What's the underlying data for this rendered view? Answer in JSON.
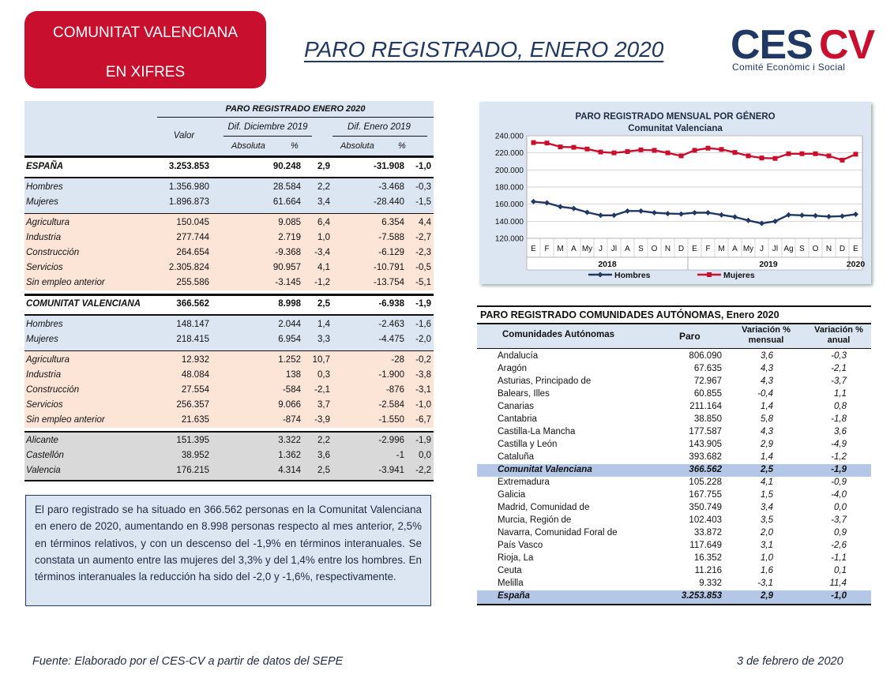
{
  "badge": {
    "line1": "COMUNITAT VALENCIANA",
    "line2": "EN XIFRES",
    "color": "#c8102e"
  },
  "page_title": "PARO REGISTRADO, ENERO 2020",
  "logo": {
    "brand": "CESCV",
    "subtitle": "Comité Econòmic i Social"
  },
  "left_table": {
    "title": "PARO REGISTRADO ENERO 2020",
    "col_valor": "Valor",
    "col_dif_dic": "Dif. Diciembre 2019",
    "col_dif_ene": "Dif. Enero 2019",
    "col_absoluta": "Absoluta",
    "col_pct": "%",
    "rows": [
      {
        "name": "ESPAÑA",
        "valor": "3.253.853",
        "abs1": "90.248",
        "pct1": "2,9",
        "abs2": "-31.908",
        "pct2": "-1,0"
      },
      {
        "name": "Hombres",
        "valor": "1.356.980",
        "abs1": "28.584",
        "pct1": "2,2",
        "abs2": "-3.468",
        "pct2": "-0,3"
      },
      {
        "name": "Mujeres",
        "valor": "1.896.873",
        "abs1": "61.664",
        "pct1": "3,4",
        "abs2": "-28.440",
        "pct2": "-1,5"
      },
      {
        "name": "Agricultura",
        "valor": "150.045",
        "abs1": "9.085",
        "pct1": "6,4",
        "abs2": "6.354",
        "pct2": "4,4"
      },
      {
        "name": "Industria",
        "valor": "277.744",
        "abs1": "2.719",
        "pct1": "1,0",
        "abs2": "-7.588",
        "pct2": "-2,7"
      },
      {
        "name": "Construcción",
        "valor": "264.654",
        "abs1": "-9.368",
        "pct1": "-3,4",
        "abs2": "-6.129",
        "pct2": "-2,3"
      },
      {
        "name": "Servicios",
        "valor": "2.305.824",
        "abs1": "90.957",
        "pct1": "4,1",
        "abs2": "-10.791",
        "pct2": "-0,5"
      },
      {
        "name": "Sin empleo anterior",
        "valor": "255.586",
        "abs1": "-3.145",
        "pct1": "-1,2",
        "abs2": "-13.754",
        "pct2": "-5,1"
      },
      {
        "name": "COMUNITAT VALENCIANA",
        "valor": "366.562",
        "abs1": "8.998",
        "pct1": "2,5",
        "abs2": "-6.938",
        "pct2": "-1,9"
      },
      {
        "name": "Hombres",
        "valor": "148.147",
        "abs1": "2.044",
        "pct1": "1,4",
        "abs2": "-2.463",
        "pct2": "-1,6"
      },
      {
        "name": "Mujeres",
        "valor": "218.415",
        "abs1": "6.954",
        "pct1": "3,3",
        "abs2": "-4.475",
        "pct2": "-2,0"
      },
      {
        "name": "Agricultura",
        "valor": "12.932",
        "abs1": "1.252",
        "pct1": "10,7",
        "abs2": "-28",
        "pct2": "-0,2"
      },
      {
        "name": "Industria",
        "valor": "48.084",
        "abs1": "138",
        "pct1": "0,3",
        "abs2": "-1.900",
        "pct2": "-3,8"
      },
      {
        "name": "Construcción",
        "valor": "27.554",
        "abs1": "-584",
        "pct1": "-2,1",
        "abs2": "-876",
        "pct2": "-3,1"
      },
      {
        "name": "Servicios",
        "valor": "256.357",
        "abs1": "9.066",
        "pct1": "3,7",
        "abs2": "-2.584",
        "pct2": "-1,0"
      },
      {
        "name": "Sin empleo anterior",
        "valor": "21.635",
        "abs1": "-874",
        "pct1": "-3,9",
        "abs2": "-1.550",
        "pct2": "-6,7"
      },
      {
        "name": "Alicante",
        "valor": "151.395",
        "abs1": "3.322",
        "pct1": "2,2",
        "abs2": "-2.996",
        "pct2": "-1,9"
      },
      {
        "name": "Castellón",
        "valor": "38.952",
        "abs1": "1.362",
        "pct1": "3,6",
        "abs2": "-1",
        "pct2": "0,0"
      },
      {
        "name": "Valencia",
        "valor": "176.215",
        "abs1": "4.314",
        "pct1": "2,5",
        "abs2": "-3.941",
        "pct2": "-2,2"
      }
    ]
  },
  "summary_text": "El paro registrado se ha situado en 366.562 personas en la Comunitat Valenciana en enero de 2020, aumentando en 8.998 personas respecto al mes anterior, 2,5% en términos relativos, y con un descenso del -1,9% en términos interanuales. Se constata un aumento entre las mujeres del 3,3% y del 1,4% entre los hombres. En términos interanuales la reducción ha sido del -2,0 y -1,6%, respectivamente.",
  "chart_data": {
    "type": "line",
    "title": "PARO REGISTRADO MENSUAL POR GÉNERO",
    "subtitle": "Comunitat Valenciana",
    "categories": [
      "E",
      "F",
      "M",
      "A",
      "My",
      "J",
      "Jl",
      "A",
      "S",
      "O",
      "N",
      "D",
      "E",
      "F",
      "M",
      "A",
      "My",
      "J",
      "Jl",
      "Ag",
      "S",
      "O",
      "N",
      "D",
      "E"
    ],
    "year_labels": [
      "2018",
      "2019",
      "2020"
    ],
    "ylim": [
      120000,
      240000
    ],
    "yticks": [
      "120.000",
      "140.000",
      "160.000",
      "180.000",
      "200.000",
      "220.000",
      "240.000"
    ],
    "yticks_values": [
      120000,
      140000,
      160000,
      180000,
      200000,
      220000,
      240000
    ],
    "grid": true,
    "legend": "bottom",
    "series": [
      {
        "name": "Hombres",
        "color": "#1f3864",
        "values": [
          163000,
          161500,
          157000,
          155000,
          150500,
          147000,
          147000,
          152000,
          152000,
          150000,
          149000,
          148500,
          150000,
          150000,
          147500,
          145000,
          141000,
          137500,
          140000,
          147500,
          147000,
          146500,
          145500,
          146000,
          148147
        ]
      },
      {
        "name": "Mujeres",
        "color": "#c8102e",
        "values": [
          232000,
          231500,
          227000,
          226500,
          224500,
          221000,
          220000,
          221500,
          223500,
          223000,
          220000,
          216500,
          223000,
          225500,
          224000,
          220500,
          216500,
          214000,
          213500,
          219000,
          219000,
          219000,
          216500,
          211500,
          218415
        ]
      }
    ]
  },
  "right_table": {
    "title": "PARO REGISTRADO COMUNIDADES AUTÓNOMAS, Enero 2020",
    "col_ca": "Comunidades Autónomas",
    "col_paro": "Paro",
    "col_mensual": "Variación % mensual",
    "col_mensual_1": "Variación %",
    "col_mensual_2": "mensual",
    "col_anual_1": "Variación %",
    "col_anual_2": "anual",
    "rows": [
      {
        "name": "Andalucía",
        "paro": "806.090",
        "mes": "3,6",
        "anual": "-0,3"
      },
      {
        "name": "Aragón",
        "paro": "67.635",
        "mes": "4,3",
        "anual": "-2,1"
      },
      {
        "name": "Asturias, Principado de",
        "paro": "72.967",
        "mes": "4,3",
        "anual": "-3,7"
      },
      {
        "name": "Balears, Illes",
        "paro": "60.855",
        "mes": "-0,4",
        "anual": "1,1"
      },
      {
        "name": "Canarias",
        "paro": "211.164",
        "mes": "1,4",
        "anual": "0,8"
      },
      {
        "name": "Cantabria",
        "paro": "38.850",
        "mes": "5,8",
        "anual": "-1,8"
      },
      {
        "name": "Castilla-La Mancha",
        "paro": "177.587",
        "mes": "4,3",
        "anual": "3,6"
      },
      {
        "name": "Castilla y León",
        "paro": "143.905",
        "mes": "2,9",
        "anual": "-4,9"
      },
      {
        "name": "Cataluña",
        "paro": "393.682",
        "mes": "1,4",
        "anual": "-1,2"
      },
      {
        "name": "Comunitat Valenciana",
        "paro": "366.562",
        "mes": "2,5",
        "anual": "-1,9"
      },
      {
        "name": "Extremadura",
        "paro": "105.228",
        "mes": "4,1",
        "anual": "-0,9"
      },
      {
        "name": "Galicia",
        "paro": "167.755",
        "mes": "1,5",
        "anual": "-4,0"
      },
      {
        "name": "Madrid, Comunidad de",
        "paro": "350.749",
        "mes": "3,4",
        "anual": "0,0"
      },
      {
        "name": "Murcia, Región de",
        "paro": "102.403",
        "mes": "3,5",
        "anual": "-3,7"
      },
      {
        "name": "Navarra, Comunidad Foral de",
        "paro": "33.872",
        "mes": "2,0",
        "anual": "0,9"
      },
      {
        "name": "País Vasco",
        "paro": "117.649",
        "mes": "3,1",
        "anual": "-2,6"
      },
      {
        "name": "Rioja, La",
        "paro": "16.352",
        "mes": "1,0",
        "anual": "-1,1"
      },
      {
        "name": "Ceuta",
        "paro": "11.216",
        "mes": "1,6",
        "anual": "0,1"
      },
      {
        "name": "Melilla",
        "paro": "9.332",
        "mes": "-3,1",
        "anual": "11,4"
      },
      {
        "name": "España",
        "paro": "3.253.853",
        "mes": "2,9",
        "anual": "-1,0"
      }
    ]
  },
  "footer": {
    "source": "Fuente: Elaborado por el CES-CV a partir de datos del SEPE",
    "date": "3 de febrero de 2020"
  }
}
